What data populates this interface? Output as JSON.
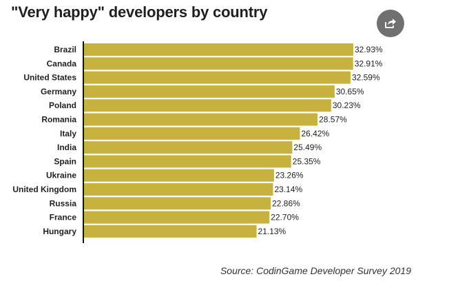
{
  "header": {
    "title": "\"Very happy\" developers by country",
    "share_icon": "share-icon"
  },
  "colors": {
    "bar": "#c7b13f",
    "axis": "#111111",
    "share_bg": "#707070"
  },
  "chart_data": {
    "type": "bar",
    "orientation": "horizontal",
    "title": "\"Very happy\" developers by country",
    "categories": [
      "Brazil",
      "Canada",
      "United States",
      "Germany",
      "Poland",
      "Romania",
      "Italy",
      "India",
      "Spain",
      "Ukraine",
      "United Kingdom",
      "Russia",
      "France",
      "Hungary"
    ],
    "values": [
      32.93,
      32.91,
      32.59,
      30.65,
      30.23,
      28.57,
      26.42,
      25.49,
      25.35,
      23.26,
      23.14,
      22.86,
      22.7,
      21.13
    ],
    "value_labels": [
      "32.93%",
      "32.91%",
      "32.59%",
      "30.65%",
      "30.23%",
      "28.57%",
      "26.42%",
      "25.49%",
      "25.35%",
      "23.26%",
      "23.14%",
      "22.86%",
      "22.70%",
      "21.13%"
    ],
    "xlim": [
      0,
      35
    ],
    "xlabel": "",
    "ylabel": "",
    "grid": false,
    "legend": "none"
  },
  "footer": {
    "source": "Source: CodinGame Developer Survey 2019"
  }
}
